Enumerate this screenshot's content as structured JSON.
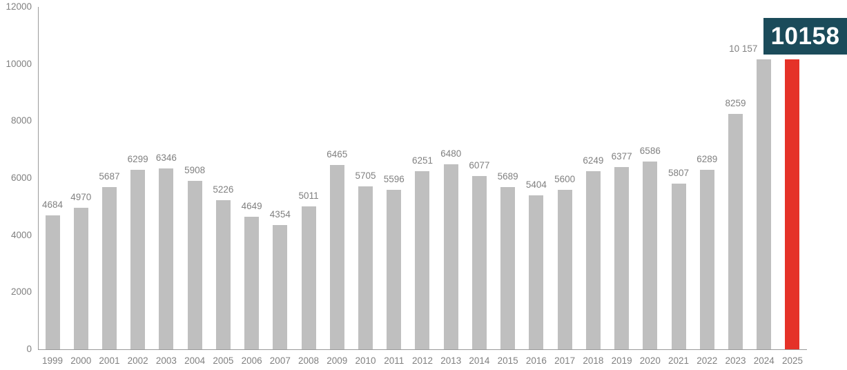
{
  "chart_data": {
    "type": "bar",
    "title": "",
    "xlabel": "",
    "ylabel": "",
    "categories": [
      "1999",
      "2000",
      "2001",
      "2002",
      "2003",
      "2004",
      "2005",
      "2006",
      "2007",
      "2008",
      "2009",
      "2010",
      "2011",
      "2012",
      "2013",
      "2014",
      "2015",
      "2016",
      "2017",
      "2018",
      "2019",
      "2020",
      "2021",
      "2022",
      "2023",
      "2024",
      "2025"
    ],
    "values": [
      4684,
      4970,
      5687,
      6299,
      6346,
      5908,
      5226,
      4649,
      4354,
      5011,
      6465,
      5705,
      5596,
      6251,
      6480,
      6077,
      5689,
      5404,
      5600,
      6249,
      6377,
      6586,
      5807,
      6289,
      8259,
      10157,
      10158
    ],
    "bar_labels": [
      "4684",
      "4970",
      "5687",
      "6299",
      "6346",
      "5908",
      "5226",
      "4649",
      "4354",
      "5011",
      "6465",
      "5705",
      "5596",
      "6251",
      "6480",
      "6077",
      "5689",
      "5404",
      "5600",
      "6249",
      "6377",
      "6586",
      "5807",
      "6289",
      "8259",
      "10 157",
      "10158"
    ],
    "ylim": [
      0,
      12000
    ],
    "yticks": [
      0,
      2000,
      4000,
      6000,
      8000,
      10000,
      12000
    ],
    "grid": "off",
    "legend": "none",
    "colors": {
      "bar": "#BFBFBF",
      "highlight_bar": "#E53228",
      "label_text": "#808080",
      "axis_line": "#9A9A9A",
      "callout_bg": "#1B4B5A",
      "callout_text": "#FFFFFF"
    },
    "highlight": {
      "index": 26,
      "category": "2025",
      "value": 10158,
      "callout_label": "10158"
    },
    "label_offsets": {
      "2024": -30
    }
  }
}
